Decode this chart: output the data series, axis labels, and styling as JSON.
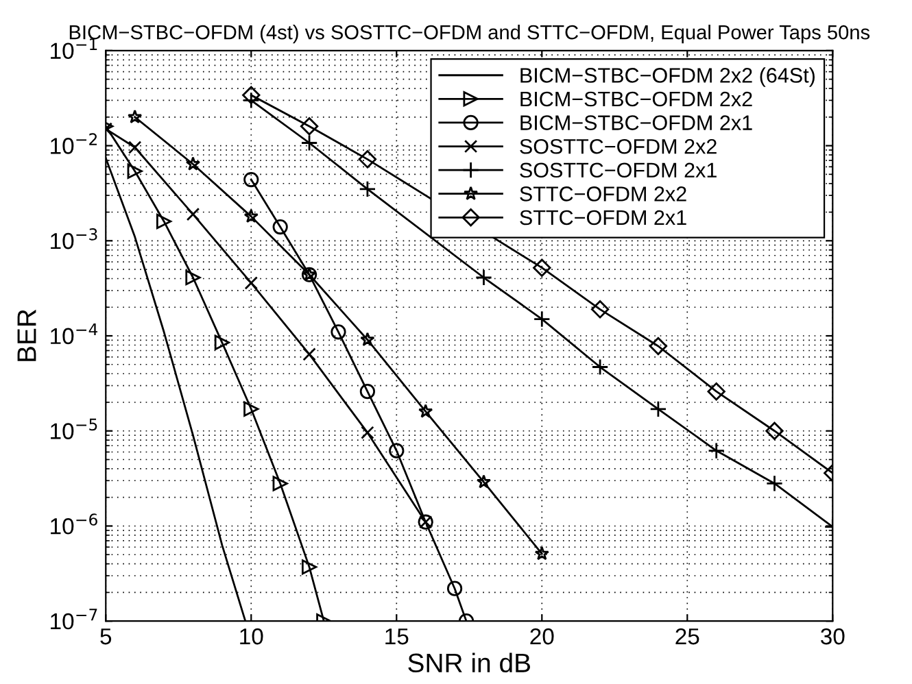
{
  "chart_data": {
    "type": "line",
    "title": "BICM−STBC−OFDM (4st) vs SOSTTC−OFDM and STTC−OFDM, Equal Power Taps 50ns",
    "xlabel": "SNR in dB",
    "ylabel": "BER",
    "log": "y",
    "grid": true,
    "legend": "top right",
    "xlim": [
      5,
      30
    ],
    "xticks": [
      5,
      10,
      15,
      20,
      25,
      30
    ],
    "ylim": [
      1e-07,
      0.1
    ],
    "yticks": [
      {
        "value": 1e-07,
        "label": "10$^{−7}$"
      },
      {
        "value": 1e-06,
        "label": "10$^{−6}$"
      },
      {
        "value": 1e-05,
        "label": "10$^{−5}$"
      },
      {
        "value": 0.0001,
        "label": "10$^{−4}$"
      },
      {
        "value": 0.001,
        "label": "10$^{−3}$"
      },
      {
        "value": 0.01,
        "label": "10$^{−2}$"
      },
      {
        "value": 0.1,
        "label": "10$^{−1}$"
      }
    ],
    "series": [
      {
        "name": "BICM−STBC−OFDM 2x2 (64St)",
        "color": "#000000",
        "marker": "none",
        "x": [
          5,
          6,
          7,
          8,
          9,
          9.8
        ],
        "values": [
          0.0074,
          0.0011,
          0.00011,
          9e-06,
          6.3e-07,
          1e-07
        ]
      },
      {
        "name": "BICM−STBC−OFDM 2x2",
        "color": "#000000",
        "marker": "triangle",
        "x": [
          5,
          6,
          7,
          8,
          9,
          10,
          11,
          12,
          12.5
        ],
        "values": [
          0.016,
          0.0054,
          0.0016,
          0.00041,
          8.5e-05,
          1.7e-05,
          2.8e-06,
          3.7e-07,
          1e-07
        ]
      },
      {
        "name": "BICM−STBC−OFDM 2x1",
        "color": "#000000",
        "marker": "circle",
        "x": [
          10,
          11,
          12,
          13,
          14,
          15,
          16,
          17,
          17.4
        ],
        "values": [
          0.0044,
          0.0014,
          0.00044,
          0.00011,
          2.6e-05,
          6.2e-06,
          1.1e-06,
          2.2e-07,
          1e-07
        ]
      },
      {
        "name": "SOSTTC−OFDM 2x2",
        "color": "#000000",
        "marker": "cross",
        "x": [
          5,
          6,
          8,
          10,
          12,
          14,
          16
        ],
        "values": [
          0.015,
          0.0096,
          0.0019,
          0.00036,
          6.4e-05,
          9.6e-06,
          1.1e-06
        ]
      },
      {
        "name": "SOSTTC−OFDM 2x1",
        "color": "#000000",
        "marker": "plus",
        "x": [
          10,
          12,
          14,
          18,
          20,
          22,
          24,
          26,
          28,
          30
        ],
        "values": [
          0.03,
          0.0107,
          0.0035,
          0.00041,
          0.00015,
          4.7e-05,
          1.7e-05,
          6.2e-06,
          2.8e-06,
          9.8e-07
        ]
      },
      {
        "name": "STTC−OFDM 2x2",
        "color": "#000000",
        "marker": "star",
        "x": [
          6,
          8,
          10,
          12,
          14,
          16,
          18,
          20
        ],
        "values": [
          0.02,
          0.0064,
          0.0018,
          0.00044,
          9.1e-05,
          1.6e-05,
          2.9e-06,
          5.1e-07
        ]
      },
      {
        "name": "STTC−OFDM 2x1",
        "color": "#000000",
        "marker": "diamond",
        "x": [
          10,
          12,
          14,
          20,
          22,
          24,
          26,
          28,
          30
        ],
        "values": [
          0.034,
          0.016,
          0.0072,
          0.00052,
          0.00019,
          7.8e-05,
          2.6e-05,
          1e-05,
          3.6e-06
        ]
      }
    ]
  }
}
